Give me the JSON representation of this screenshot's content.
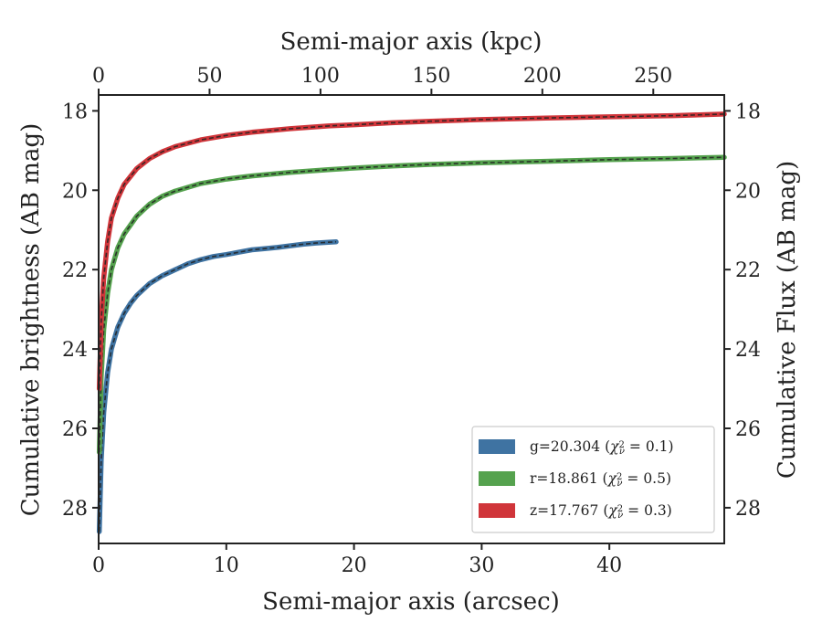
{
  "chart_data": {
    "type": "line",
    "title": "",
    "xlabel": "Semi-major axis (arcsec)",
    "xlabel_top": "Semi-major axis (kpc)",
    "ylabel": "Cumulative brightness (AB mag)",
    "ylabel_right": "Cumulative Flux (AB mag)",
    "xlim": [
      0,
      49
    ],
    "ylim": [
      28.9,
      17.6
    ],
    "y_inverted": true,
    "xlim_top": [
      0,
      282
    ],
    "grid": false,
    "legend_position": "lower-right",
    "x_ticks": [
      0,
      10,
      20,
      30,
      40
    ],
    "x_tick_labels": [
      "0",
      "10",
      "20",
      "30",
      "40"
    ],
    "x_ticks_top": [
      0,
      50,
      100,
      150,
      200,
      250
    ],
    "x_tick_labels_top": [
      "0",
      "50",
      "100",
      "150",
      "200",
      "250"
    ],
    "y_ticks": [
      18,
      20,
      22,
      24,
      26,
      28
    ],
    "y_tick_labels": [
      "18",
      "20",
      "22",
      "24",
      "26",
      "28"
    ],
    "model_line_style": "dashed",
    "model_line_color": "#222222",
    "series": [
      {
        "name": "g=20.304 (χ²ν = 0.1)",
        "label_main": "g=20.304 (",
        "label_chi": "χ",
        "label_sup": "2",
        "label_sub": "ν",
        "label_tail": " = 0.1)",
        "color": "#3f73a2",
        "x": [
          0.05,
          0.2,
          0.4,
          0.7,
          1.0,
          1.5,
          2.0,
          2.5,
          3.0,
          4.0,
          5.0,
          6.0,
          7.0,
          8.0,
          9.0,
          10.0,
          11.0,
          12.0,
          13.0,
          14.0,
          15.0,
          16.0,
          17.0,
          18.0,
          18.6
        ],
        "y": [
          28.6,
          26.8,
          25.6,
          24.6,
          24.0,
          23.45,
          23.1,
          22.85,
          22.65,
          22.35,
          22.15,
          22.0,
          21.85,
          21.75,
          21.67,
          21.62,
          21.56,
          21.5,
          21.47,
          21.44,
          21.4,
          21.36,
          21.33,
          21.31,
          21.3
        ]
      },
      {
        "name": "r=18.861 (χ²ν = 0.5)",
        "label_main": "r=18.861 (",
        "label_chi": "χ",
        "label_sup": "2",
        "label_sub": "ν",
        "label_tail": " = 0.5)",
        "color": "#55a24e",
        "x": [
          0.05,
          0.2,
          0.4,
          0.7,
          1.0,
          1.5,
          2.0,
          3.0,
          4.0,
          5.0,
          6.0,
          8.0,
          10.0,
          12.0,
          15.0,
          18.0,
          20.0,
          23.0,
          26.0,
          30.0,
          35.0,
          40.0,
          45.0,
          49.0
        ],
        "y": [
          26.6,
          24.7,
          23.5,
          22.6,
          22.0,
          21.45,
          21.1,
          20.65,
          20.35,
          20.15,
          20.02,
          19.83,
          19.72,
          19.64,
          19.55,
          19.48,
          19.44,
          19.39,
          19.35,
          19.31,
          19.27,
          19.23,
          19.2,
          19.17
        ]
      },
      {
        "name": "z=17.767 (χ²ν = 0.3)",
        "label_main": "z=17.767 (",
        "label_chi": "χ",
        "label_sup": "2",
        "label_sub": "ν",
        "label_tail": " = 0.3)",
        "color": "#d0353a",
        "x": [
          0.05,
          0.2,
          0.4,
          0.7,
          1.0,
          1.5,
          2.0,
          3.0,
          4.0,
          5.0,
          6.0,
          8.0,
          10.0,
          12.0,
          15.0,
          18.0,
          20.0,
          23.0,
          26.0,
          30.0,
          35.0,
          40.0,
          45.0,
          49.0
        ],
        "y": [
          25.0,
          23.3,
          22.2,
          21.3,
          20.7,
          20.2,
          19.85,
          19.45,
          19.2,
          19.03,
          18.9,
          18.73,
          18.62,
          18.54,
          18.45,
          18.38,
          18.35,
          18.3,
          18.26,
          18.22,
          18.18,
          18.15,
          18.12,
          18.08
        ]
      }
    ]
  }
}
